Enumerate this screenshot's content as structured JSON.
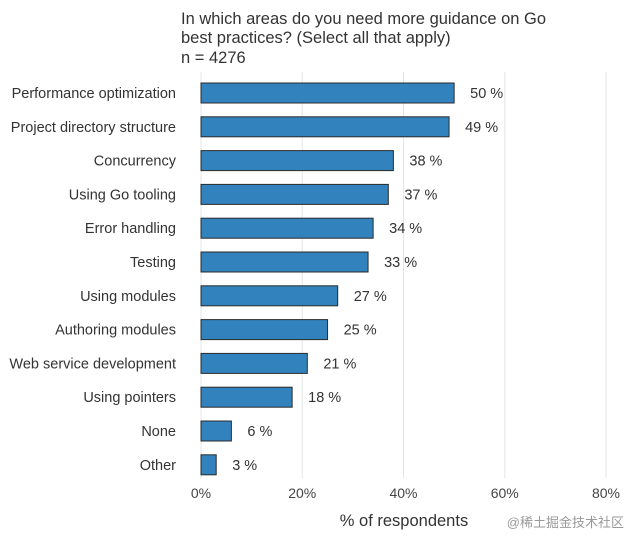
{
  "chart_data": {
    "type": "bar",
    "orientation": "horizontal",
    "title": "In which areas do you need more guidance on Go best practices? (Select all that apply)",
    "title_lines": [
      "In which areas do you need more guidance on Go",
      "best practices? (Select all that apply)"
    ],
    "subtitle": "n = 4276",
    "xlabel": "% of respondents",
    "ylabel": "",
    "xlim": [
      0,
      80
    ],
    "x_ticks": [
      0,
      20,
      40,
      60,
      80
    ],
    "x_tick_labels": [
      "0%",
      "20%",
      "40%",
      "60%",
      "80%"
    ],
    "grid": "vertical",
    "categories": [
      "Performance optimization",
      "Project directory structure",
      "Concurrency",
      "Using Go tooling",
      "Error handling",
      "Testing",
      "Using modules",
      "Authoring modules",
      "Web service development",
      "Using pointers",
      "None",
      "Other"
    ],
    "values": [
      50,
      49,
      38,
      37,
      34,
      33,
      27,
      25,
      21,
      18,
      6,
      3
    ],
    "value_labels": [
      "50 %",
      "49 %",
      "38 %",
      "37 %",
      "34 %",
      "33 %",
      "27 %",
      "25 %",
      "21 %",
      "18 %",
      "6 %",
      "3 %"
    ],
    "bar_color": "#3182bd",
    "bar_stroke_color": "#2b2b2b",
    "grid_color": "#e5e5e5"
  },
  "watermark": "@稀土掘金技术社区"
}
